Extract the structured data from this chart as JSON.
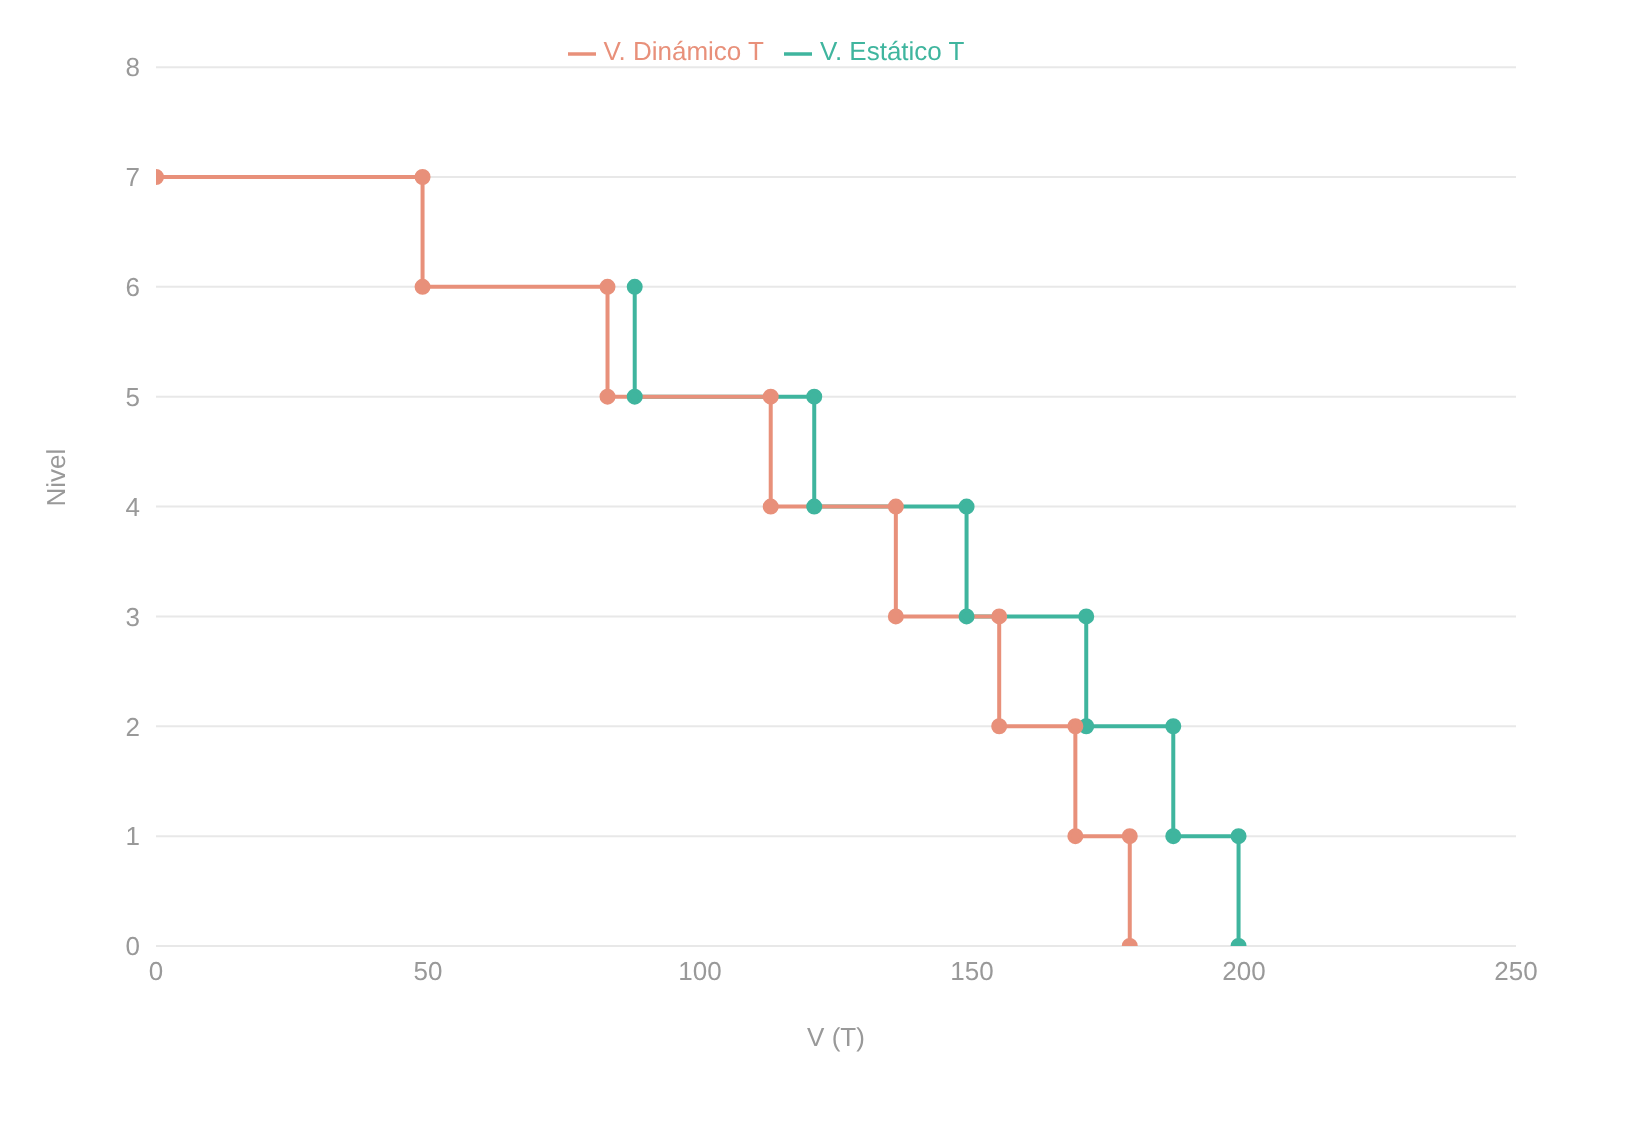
{
  "chart_data": {
    "type": "line",
    "xlabel": "V (T)",
    "ylabel": "Nivel",
    "xlim": [
      0,
      250
    ],
    "xticks": [
      0,
      50,
      100,
      150,
      200,
      250
    ],
    "ylim": [
      0,
      8
    ],
    "yticks": [
      0,
      1,
      2,
      3,
      4,
      5,
      6,
      7,
      8
    ],
    "grid": "y",
    "legend": "top",
    "marker": "circle",
    "line_style": "solid",
    "series": [
      {
        "name": "V. Estático T",
        "color": "#3fb59e",
        "x": [
          88,
          88,
          121,
          121,
          149,
          149,
          171,
          171,
          187,
          187,
          199,
          199
        ],
        "values": [
          6,
          5,
          5,
          4,
          4,
          3,
          3,
          2,
          2,
          1,
          1,
          0
        ]
      },
      {
        "name": "V. Dinámico T",
        "color": "#e8907a",
        "x": [
          0,
          49,
          49,
          83,
          83,
          113,
          113,
          136,
          136,
          155,
          155,
          169,
          169,
          179,
          179
        ],
        "values": [
          7,
          7,
          6,
          6,
          5,
          5,
          4,
          4,
          3,
          3,
          2,
          2,
          1,
          1,
          0
        ]
      }
    ]
  }
}
